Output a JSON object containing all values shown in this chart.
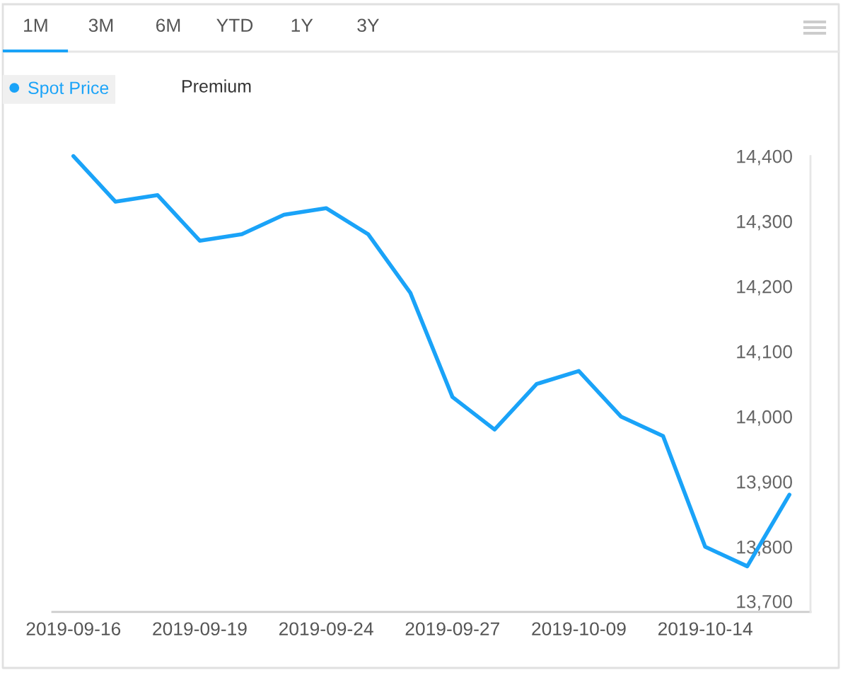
{
  "chart_data": {
    "type": "line",
    "categories": [
      "2019-09-16",
      null,
      null,
      "2019-09-19",
      null,
      null,
      "2019-09-24",
      null,
      null,
      "2019-09-27",
      null,
      null,
      "2019-10-09",
      null,
      null,
      "2019-10-14",
      null,
      null
    ],
    "series": [
      {
        "name": "Spot Price",
        "color": "#1aa3f8",
        "values": [
          14400,
          14330,
          14340,
          14270,
          14280,
          14310,
          14320,
          14280,
          14190,
          14030,
          13980,
          14050,
          14070,
          14000,
          13970,
          13800,
          13770,
          13880
        ]
      }
    ],
    "ylim": [
      13700,
      14400
    ],
    "yticks": [
      {
        "value": 13700,
        "label": "13,700"
      },
      {
        "value": 13800,
        "label": "13,800"
      },
      {
        "value": 13900,
        "label": "13,900"
      },
      {
        "value": 14000,
        "label": "14,000"
      },
      {
        "value": 14100,
        "label": "14,100"
      },
      {
        "value": 14200,
        "label": "14,200"
      },
      {
        "value": 14300,
        "label": "14,300"
      },
      {
        "value": 14400,
        "label": "14,400"
      }
    ],
    "legend": "top left",
    "annotations": [
      "1M",
      "3M",
      "6M",
      "YTD",
      "1Y",
      "3Y",
      "Premium"
    ]
  }
}
